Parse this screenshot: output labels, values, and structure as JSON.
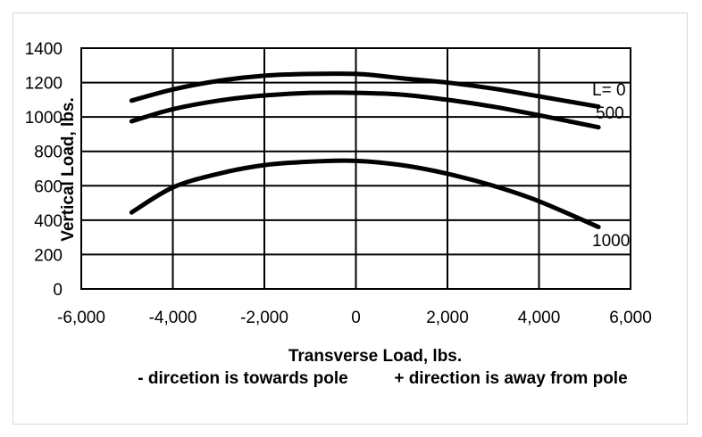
{
  "chart_data": {
    "type": "line",
    "xlabel": "Transverse Load, lbs.",
    "xlabel_note_left": "- dircetion is towards pole",
    "xlabel_note_right": "+ direction is away from pole",
    "ylabel": "Vertical Load, lbs.",
    "xlim": [
      -6000,
      6000
    ],
    "ylim": [
      0,
      1400
    ],
    "xticks": [
      -6000,
      -4000,
      -2000,
      0,
      2000,
      4000,
      6000
    ],
    "xtick_labels": [
      "-6,000",
      "-4,000",
      "-2,000",
      "0",
      "2,000",
      "4,000",
      "6,000"
    ],
    "yticks": [
      0,
      200,
      400,
      600,
      800,
      1000,
      1200,
      1400
    ],
    "ytick_labels": [
      "0",
      "200",
      "400",
      "600",
      "800",
      "1000",
      "1200",
      "1400"
    ],
    "grid": true,
    "line_color": "#000000",
    "series": [
      {
        "name": "L=  0",
        "x": [
          -4900,
          -4000,
          -3000,
          -2000,
          -1000,
          0,
          500,
          1000,
          2000,
          3000,
          4000,
          5300
        ],
        "y": [
          1095,
          1160,
          1210,
          1240,
          1250,
          1250,
          1240,
          1225,
          1200,
          1165,
          1120,
          1060
        ]
      },
      {
        "name": "500",
        "x": [
          -4900,
          -4000,
          -3000,
          -2000,
          -1000,
          0,
          1000,
          2000,
          3000,
          4000,
          5300
        ],
        "y": [
          975,
          1045,
          1095,
          1125,
          1140,
          1140,
          1130,
          1100,
          1060,
          1010,
          940
        ]
      },
      {
        "name": "1000",
        "x": [
          -4900,
          -4000,
          -3000,
          -2000,
          -1000,
          0,
          1000,
          2000,
          3000,
          4000,
          5300
        ],
        "y": [
          445,
          590,
          670,
          720,
          740,
          745,
          720,
          670,
          600,
          510,
          360
        ]
      }
    ]
  }
}
